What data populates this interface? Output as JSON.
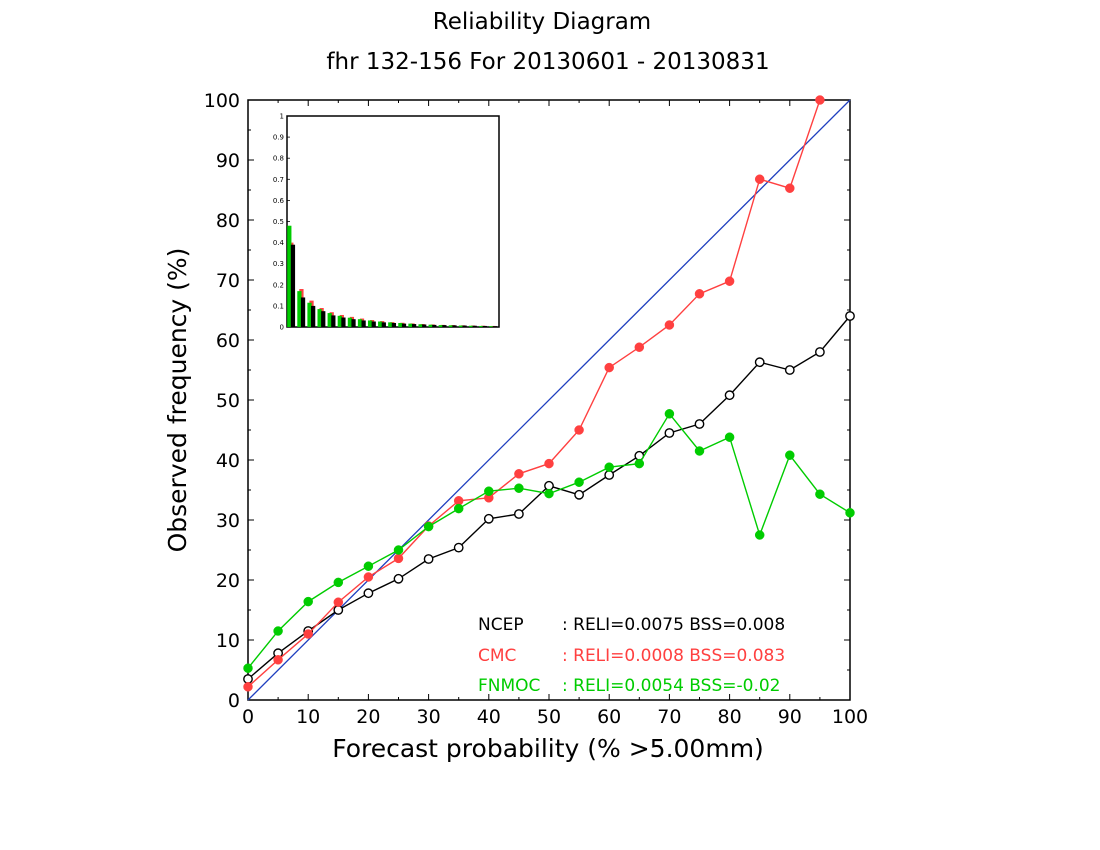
{
  "header": {
    "title": "Reliability Diagram",
    "subtitle": "fhr 132-156 For 20130601 - 20130831"
  },
  "chart_data": {
    "type": "line",
    "xlabel": "Forecast probability (% >5.00mm)",
    "ylabel": "Observed frequency (%)",
    "xlim": [
      0,
      100
    ],
    "ylim": [
      0,
      100
    ],
    "x_ticks": [
      "0",
      "10",
      "20",
      "30",
      "40",
      "50",
      "60",
      "70",
      "80",
      "90",
      "100"
    ],
    "y_ticks": [
      "0",
      "10",
      "20",
      "30",
      "40",
      "50",
      "60",
      "70",
      "80",
      "90",
      "100"
    ],
    "grid": false,
    "diagonal_color": "#1f3fbf",
    "x": [
      0,
      5,
      10,
      15,
      20,
      25,
      30,
      35,
      40,
      45,
      50,
      55,
      60,
      65,
      70,
      75,
      80,
      85,
      90,
      95,
      100
    ],
    "series": [
      {
        "name": "NCEP",
        "color": "#000000",
        "marker": "open-circle",
        "legend": ": RELI=0.0075  BSS=0.008",
        "values": [
          3.5,
          7.8,
          11.5,
          15.0,
          17.8,
          20.2,
          23.5,
          25.4,
          30.2,
          31.0,
          35.7,
          34.2,
          37.5,
          40.7,
          44.5,
          46.0,
          50.8,
          56.3,
          55.0,
          58.0,
          64.0
        ]
      },
      {
        "name": "CMC",
        "color": "#ff4040",
        "marker": "filled-circle",
        "legend": ": RELI=0.0008  BSS=0.083",
        "values": [
          2.2,
          6.7,
          11.0,
          16.3,
          20.5,
          23.6,
          29.0,
          33.2,
          33.7,
          37.7,
          39.4,
          45.0,
          55.4,
          58.8,
          62.5,
          67.7,
          69.8,
          86.8,
          85.3,
          100.0,
          null
        ]
      },
      {
        "name": "FNMOC",
        "color": "#00cc00",
        "marker": "filled-circle",
        "legend": ": RELI=0.0054  BSS=-0.02",
        "values": [
          5.3,
          11.5,
          16.4,
          19.6,
          22.3,
          25.0,
          28.9,
          31.9,
          34.8,
          35.3,
          34.4,
          36.3,
          38.8,
          39.4,
          47.7,
          41.5,
          43.8,
          27.5,
          40.8,
          34.3,
          31.2
        ]
      }
    ],
    "inset": {
      "type": "bar",
      "ylim": [
        0,
        1
      ],
      "y_ticks": [
        "0",
        "0.1",
        "0.2",
        "0.3",
        "0.4",
        "0.5",
        "0.6",
        "0.7",
        "0.8",
        "0.9",
        "1"
      ],
      "series": [
        {
          "name": "NCEP",
          "color": "#000000",
          "values": [
            0.39,
            0.14,
            0.1,
            0.075,
            0.055,
            0.045,
            0.037,
            0.031,
            0.026,
            0.022,
            0.019,
            0.016,
            0.014,
            0.012,
            0.01,
            0.009,
            0.008,
            0.007,
            0.006,
            0.005,
            0.004
          ]
        },
        {
          "name": "CMC",
          "color": "#ff4040",
          "values": [
            0.4,
            0.18,
            0.125,
            0.09,
            0.07,
            0.057,
            0.048,
            0.04,
            0.033,
            0.028,
            0.023,
            0.02,
            0.017,
            0.014,
            0.012,
            0.01,
            0.009,
            0.008,
            0.007,
            0.006,
            0.005
          ]
        },
        {
          "name": "FNMOC",
          "color": "#00cc00",
          "values": [
            0.48,
            0.17,
            0.115,
            0.085,
            0.066,
            0.053,
            0.044,
            0.037,
            0.031,
            0.026,
            0.022,
            0.019,
            0.016,
            0.013,
            0.011,
            0.009,
            0.008,
            0.007,
            0.006,
            0.005,
            0.004
          ]
        }
      ]
    }
  }
}
